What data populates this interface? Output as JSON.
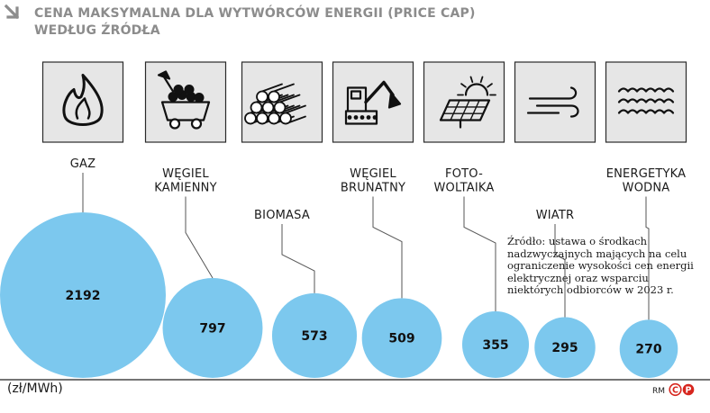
{
  "title": {
    "line1": "CENA MAKSYMALNA DLA WYTWÓRCÓW ENERGII (PRICE CAP)",
    "line2": "WEDŁUG ŹRÓDŁA"
  },
  "unit_label": "(zł/MWh)",
  "source_note": "Źródło: ustawa o środkach nadzwyczajnych mających na celu ograniczenie wysokości cen energii elektrycznej oraz wsparciu niektórych odbiorców w 2023 r.",
  "credit": "RM",
  "colors": {
    "bubble": "#7cc8ee",
    "icon_box": "#e6e6e6",
    "title": "#8c8c8c",
    "logo": "#d7261e"
  },
  "chart_data": {
    "type": "bubble",
    "title": "CENA MAKSYMALNA DLA WYTWÓRCÓW ENERGII (PRICE CAP) WEDŁUG ŹRÓDŁA",
    "unit": "zł/MWh",
    "categories": [
      {
        "label_lines": [
          "GAZ"
        ],
        "value": 2192,
        "icon": "flame-icon"
      },
      {
        "label_lines": [
          "WĘGIEL",
          "KAMIENNY"
        ],
        "value": 797,
        "icon": "coal-cart-icon"
      },
      {
        "label_lines": [
          "BIOMASA"
        ],
        "value": 573,
        "icon": "log-pile-icon"
      },
      {
        "label_lines": [
          "WĘGIEL",
          "BRUNATNY"
        ],
        "value": 509,
        "icon": "excavator-icon"
      },
      {
        "label_lines": [
          "FOTO-",
          "WOLTAIKA"
        ],
        "value": 355,
        "icon": "solar-panel-icon"
      },
      {
        "label_lines": [
          "WIATR"
        ],
        "value": 295,
        "icon": "wind-icon"
      },
      {
        "label_lines": [
          "ENERGETYKA",
          "WODNA"
        ],
        "value": 270,
        "icon": "water-waves-icon"
      }
    ]
  }
}
